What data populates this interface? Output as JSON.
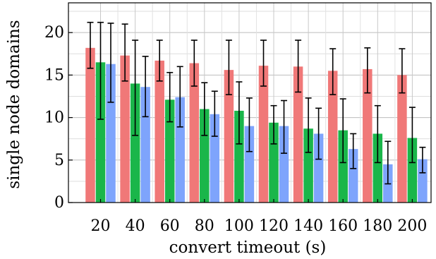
{
  "chart_data": {
    "type": "bar",
    "xlabel": "convert timeout (s)",
    "ylabel": "single node domains",
    "categories": [
      "20",
      "40",
      "60",
      "80",
      "100",
      "120",
      "140",
      "160",
      "180",
      "200"
    ],
    "ylim": [
      0,
      23.5
    ],
    "yticks": [
      0,
      5,
      10,
      15,
      20
    ],
    "grid": true,
    "series": [
      {
        "color": "#f07878",
        "values": [
          18.2,
          17.3,
          16.7,
          16.4,
          15.6,
          16.1,
          16.0,
          15.5,
          15.7,
          15.0
        ],
        "err_low": [
          15.8,
          14.3,
          14.3,
          13.7,
          12.7,
          13.7,
          13.0,
          12.7,
          12.9,
          12.9
        ],
        "err_high": [
          21.2,
          21.0,
          19.1,
          19.1,
          19.1,
          19.1,
          19.1,
          18.1,
          18.2,
          18.1
        ]
      },
      {
        "color": "#1ab64a",
        "values": [
          16.5,
          14.0,
          12.1,
          11.0,
          10.8,
          9.4,
          8.7,
          8.5,
          8.1,
          7.6
        ],
        "err_low": [
          9.8,
          7.9,
          9.5,
          7.9,
          6.9,
          6.9,
          5.9,
          4.7,
          4.7,
          4.7
        ],
        "err_high": [
          21.2,
          19.1,
          15.3,
          14.1,
          14.2,
          11.4,
          12.3,
          12.2,
          11.4,
          11.2
        ]
      },
      {
        "color": "#7ea4fc",
        "values": [
          16.3,
          13.6,
          12.4,
          10.4,
          9.0,
          9.0,
          8.1,
          6.3,
          4.5,
          5.1
        ],
        "err_low": [
          11.8,
          10.1,
          8.9,
          7.8,
          6.0,
          5.8,
          5.1,
          4.0,
          2.2,
          3.5
        ],
        "err_high": [
          21.1,
          17.2,
          16.0,
          13.1,
          12.3,
          12.0,
          11.1,
          8.1,
          7.2,
          6.5
        ]
      }
    ]
  }
}
